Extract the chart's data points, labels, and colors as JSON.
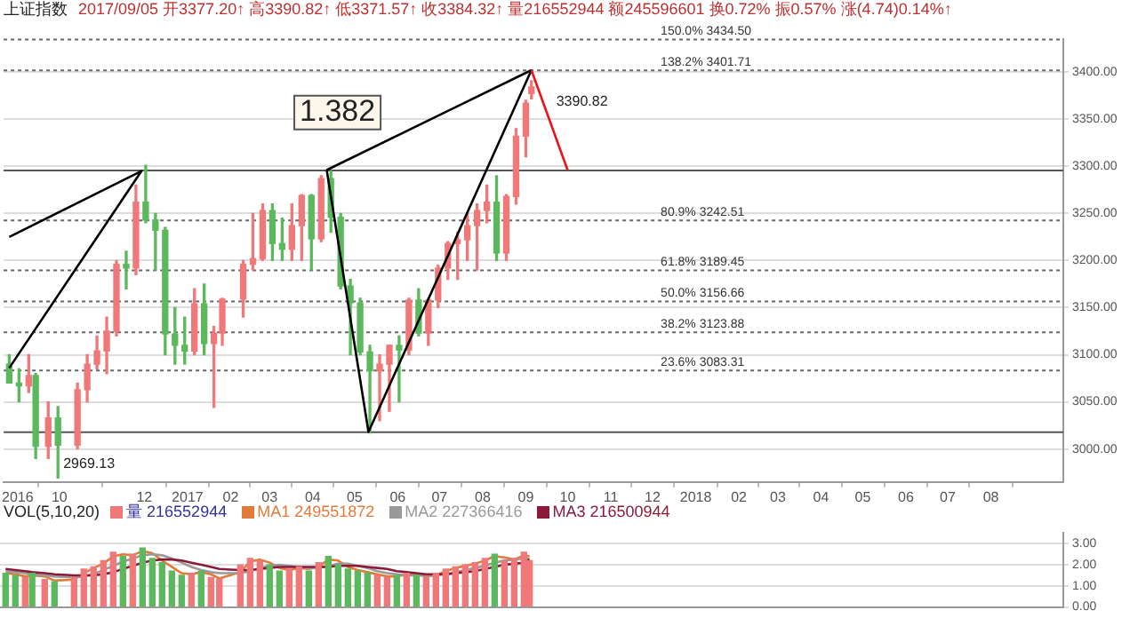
{
  "chart_data": [
    {
      "type": "candlestick",
      "title": "上证指数",
      "subtitle": "2017/09/05 开3377.20↑ 高3390.82↑ 低3371.57↑ 收3384.32↑ 量216552944 额245596601 换0.72% 振0.57% 涨(4.74)0.14%↑",
      "x": [
        "2016-08-26",
        "2016-09-02",
        "2016-09-09",
        "2016-09-14",
        "2016-09-23",
        "2016-09-30",
        "2016-10-14",
        "2016-10-21",
        "2016-10-28",
        "2016-11-04",
        "2016-11-11",
        "2016-11-18",
        "2016-11-25",
        "2016-12-02",
        "2016-12-09",
        "2016-12-16",
        "2016-12-23",
        "2016-12-30",
        "2017-01-06",
        "2017-01-13",
        "2017-01-20",
        "2017-01-26",
        "2017-02-10",
        "2017-02-17",
        "2017-02-24",
        "2017-03-03",
        "2017-03-10",
        "2017-03-17",
        "2017-03-24",
        "2017-03-31",
        "2017-04-07",
        "2017-04-14",
        "2017-04-21",
        "2017-04-28",
        "2017-05-05",
        "2017-05-12",
        "2017-05-19",
        "2017-05-26",
        "2017-06-02",
        "2017-06-09",
        "2017-06-16",
        "2017-06-23",
        "2017-06-30",
        "2017-07-07",
        "2017-07-14",
        "2017-07-21",
        "2017-07-28",
        "2017-08-04",
        "2017-08-11",
        "2017-08-18",
        "2017-08-25",
        "2017-09-01",
        "2017-09-05"
      ],
      "ohlc": [
        [
          3090,
          3100,
          3070,
          3070
        ],
        [
          3070,
          3085,
          3050,
          3067
        ],
        [
          3067,
          3100,
          3060,
          3078
        ],
        [
          3078,
          3080,
          2990,
          3003
        ],
        [
          3003,
          3050,
          2990,
          3033
        ],
        [
          3033,
          3045,
          2969.13,
          3004
        ],
        [
          3004,
          3070,
          3000,
          3063
        ],
        [
          3063,
          3100,
          3050,
          3090
        ],
        [
          3090,
          3120,
          3085,
          3104
        ],
        [
          3104,
          3140,
          3080,
          3125
        ],
        [
          3125,
          3200,
          3120,
          3196
        ],
        [
          3196,
          3210,
          3170,
          3192
        ],
        [
          3192,
          3280,
          3185,
          3262
        ],
        [
          3262,
          3301,
          3240,
          3243
        ],
        [
          3243,
          3250,
          3190,
          3232
        ],
        [
          3232,
          3235,
          3100,
          3122
        ],
        [
          3122,
          3150,
          3090,
          3110
        ],
        [
          3110,
          3140,
          3090,
          3104
        ],
        [
          3104,
          3170,
          3100,
          3154
        ],
        [
          3154,
          3175,
          3100,
          3112
        ],
        [
          3112,
          3130,
          3044,
          3123
        ],
        [
          3123,
          3160,
          3110,
          3159
        ],
        [
          3159,
          3200,
          3140,
          3196
        ],
        [
          3196,
          3250,
          3190,
          3202
        ],
        [
          3202,
          3260,
          3200,
          3253
        ],
        [
          3253,
          3260,
          3200,
          3218
        ],
        [
          3218,
          3245,
          3200,
          3212
        ],
        [
          3212,
          3260,
          3200,
          3237
        ],
        [
          3237,
          3270,
          3200,
          3269
        ],
        [
          3269,
          3270,
          3190,
          3223
        ],
        [
          3223,
          3290,
          3220,
          3287
        ],
        [
          3287,
          3295,
          3230,
          3246
        ],
        [
          3246,
          3250,
          3170,
          3173
        ],
        [
          3173,
          3180,
          3100,
          3155
        ],
        [
          3155,
          3160,
          3100,
          3103
        ],
        [
          3103,
          3110,
          3017,
          3083
        ],
        [
          3083,
          3100,
          3030,
          3090
        ],
        [
          3090,
          3110,
          3040,
          3110
        ],
        [
          3110,
          3120,
          3050,
          3105
        ],
        [
          3105,
          3160,
          3100,
          3158
        ],
        [
          3158,
          3170,
          3120,
          3123
        ],
        [
          3123,
          3160,
          3110,
          3158
        ],
        [
          3158,
          3195,
          3150,
          3192
        ],
        [
          3192,
          3220,
          3180,
          3218
        ],
        [
          3218,
          3230,
          3180,
          3222
        ],
        [
          3222,
          3250,
          3200,
          3237
        ],
        [
          3237,
          3260,
          3190,
          3253
        ],
        [
          3253,
          3280,
          3240,
          3262
        ],
        [
          3262,
          3290,
          3200,
          3208
        ],
        [
          3208,
          3270,
          3200,
          3268
        ],
        [
          3268,
          3340,
          3260,
          3332
        ],
        [
          3332,
          3370,
          3310,
          3367
        ],
        [
          3377.2,
          3390.82,
          3371.57,
          3384.32
        ]
      ],
      "colors": [
        "#5cb85c",
        "#5cb85c",
        "#f07878",
        "#5cb85c",
        "#f07878",
        "#5cb85c",
        "#f07878",
        "#f07878",
        "#f07878",
        "#f07878",
        "#f07878",
        "#5cb85c",
        "#f07878",
        "#5cb85c",
        "#5cb85c",
        "#5cb85c",
        "#5cb85c",
        "#5cb85c",
        "#f07878",
        "#5cb85c",
        "#f07878",
        "#f07878",
        "#f07878",
        "#f07878",
        "#f07878",
        "#5cb85c",
        "#5cb85c",
        "#f07878",
        "#f07878",
        "#5cb85c",
        "#f07878",
        "#5cb85c",
        "#5cb85c",
        "#5cb85c",
        "#5cb85c",
        "#5cb85c",
        "#f07878",
        "#f07878",
        "#5cb85c",
        "#f07878",
        "#5cb85c",
        "#f07878",
        "#f07878",
        "#f07878",
        "#f07878",
        "#f07878",
        "#f07878",
        "#f07878",
        "#5cb85c",
        "#f07878",
        "#f07878",
        "#f07878",
        "#f07878"
      ],
      "series": [
        {
          "type": "line",
          "color": "#000000",
          "x": [
            "2016-08-26",
            "2016-11-29",
            "2016-08-26"
          ],
          "values": [
            3225,
            3295,
            3086
          ]
        },
        {
          "type": "line",
          "color": "#000000",
          "x": [
            "2017-04-11",
            "2017-05-11",
            "2017-09-05"
          ],
          "values": [
            3296,
            3018,
            3402
          ]
        },
        {
          "type": "line",
          "color": "#000000",
          "x": [
            "2017-04-11",
            "2017-09-05"
          ],
          "values": [
            3296,
            3402
          ]
        },
        {
          "type": "line",
          "color": "#e8141a",
          "x": [
            "2017-09-05",
            "2017-10-01"
          ],
          "values": [
            3402,
            3296
          ]
        }
      ],
      "xlim": [
        "2016-08-22",
        "2018-09-22"
      ],
      "xticks": [
        {
          "value": "2016-09-01",
          "label": "2016"
        },
        {
          "value": "2016-10-01",
          "label": "10"
        },
        {
          "value": "2016-12-01",
          "label": "12"
        },
        {
          "value": "2017-01-01",
          "label": "2017"
        },
        {
          "value": "2017-02-01",
          "label": "02"
        },
        {
          "value": "2017-03-01",
          "label": "03"
        },
        {
          "value": "2017-04-01",
          "label": "04"
        },
        {
          "value": "2017-05-01",
          "label": "05"
        },
        {
          "value": "2017-06-01",
          "label": "06"
        },
        {
          "value": "2017-07-01",
          "label": "07"
        },
        {
          "value": "2017-08-01",
          "label": "08"
        },
        {
          "value": "2017-09-01",
          "label": "09"
        },
        {
          "value": "2017-10-01",
          "label": "10"
        },
        {
          "value": "2017-11-01",
          "label": "11"
        },
        {
          "value": "2017-12-01",
          "label": "12"
        },
        {
          "value": "2018-01-01",
          "label": "2018"
        },
        {
          "value": "2018-02-01",
          "label": "02"
        },
        {
          "value": "2018-03-01",
          "label": "03"
        },
        {
          "value": "2018-04-01",
          "label": "04"
        },
        {
          "value": "2018-05-01",
          "label": "05"
        },
        {
          "value": "2018-06-01",
          "label": "06"
        },
        {
          "value": "2018-07-01",
          "label": "07"
        },
        {
          "value": "2018-08-01",
          "label": "08"
        }
      ],
      "ylim": [
        2965,
        3435
      ],
      "yticks": [
        {
          "value": 3000,
          "label": "3000.00"
        },
        {
          "value": 3050,
          "label": "3050.00"
        },
        {
          "value": 3100,
          "label": "3100.00"
        },
        {
          "value": 3150,
          "label": "3150.00"
        },
        {
          "value": 3200,
          "label": "3200.00"
        },
        {
          "value": 3250,
          "label": "3250.00"
        },
        {
          "value": 3300,
          "label": "3300.00"
        },
        {
          "value": 3350,
          "label": "3350.00"
        },
        {
          "value": 3400,
          "label": "3400.00"
        }
      ],
      "grid": "y",
      "legend": false,
      "ref_lines": [
        {
          "axis": "y",
          "value": 3434.5,
          "label": "150.0% 3434.50",
          "color": "#666666",
          "line_style": "dotted"
        },
        {
          "axis": "y",
          "value": 3401.71,
          "label": "138.2% 3401.71",
          "color": "#666666",
          "line_style": "dotted"
        },
        {
          "axis": "y",
          "value": 3295.6,
          "color": "#555555",
          "line_style": "solid"
        },
        {
          "axis": "y",
          "value": 3242.51,
          "label": "80.9% 3242.51",
          "color": "#666666",
          "line_style": "dotted"
        },
        {
          "axis": "y",
          "value": 3189.45,
          "label": "61.8% 3189.45",
          "color": "#666666",
          "line_style": "dotted"
        },
        {
          "axis": "y",
          "value": 3156.66,
          "label": "50.0% 3156.66",
          "color": "#666666",
          "line_style": "dotted"
        },
        {
          "axis": "y",
          "value": 3123.88,
          "label": "38.2% 3123.88",
          "color": "#666666",
          "line_style": "dotted"
        },
        {
          "axis": "y",
          "value": 3083.31,
          "label": "23.6% 3083.31",
          "color": "#666666",
          "line_style": "dotted"
        },
        {
          "axis": "y",
          "value": 3017.7,
          "color": "#555555",
          "line_style": "solid"
        }
      ],
      "annotations": [
        "1.382",
        {
          "text": "3390.82",
          "x": "2017-09-05",
          "y": 3390.82
        },
        {
          "text": "2969.13",
          "x": "2016-09-30",
          "y": 2969.13
        }
      ]
    },
    {
      "type": "bar",
      "title": "VOL(5,10,20)",
      "x": [
        "2016-08-26",
        "2016-09-02",
        "2016-09-09",
        "2016-09-14",
        "2016-09-23",
        "2016-09-30",
        "2016-10-14",
        "2016-10-21",
        "2016-10-28",
        "2016-11-04",
        "2016-11-11",
        "2016-11-18",
        "2016-11-25",
        "2016-12-02",
        "2016-12-09",
        "2016-12-16",
        "2016-12-23",
        "2016-12-30",
        "2017-01-06",
        "2017-01-13",
        "2017-01-20",
        "2017-01-26",
        "2017-02-10",
        "2017-02-17",
        "2017-02-24",
        "2017-03-03",
        "2017-03-10",
        "2017-03-17",
        "2017-03-24",
        "2017-03-31",
        "2017-04-07",
        "2017-04-14",
        "2017-04-21",
        "2017-04-28",
        "2017-05-05",
        "2017-05-12",
        "2017-05-19",
        "2017-05-26",
        "2017-06-02",
        "2017-06-09",
        "2017-06-16",
        "2017-06-23",
        "2017-06-30",
        "2017-07-07",
        "2017-07-14",
        "2017-07-21",
        "2017-07-28",
        "2017-08-04",
        "2017-08-11",
        "2017-08-18",
        "2017-08-25",
        "2017-09-01",
        "2017-09-05"
      ],
      "series": [
        {
          "type": "bar",
          "name": "量 216552944",
          "colors": [
            "#5cb85c",
            "#5cb85c",
            "#f07878",
            "#5cb85c",
            "#f07878",
            "#5cb85c",
            "#f07878",
            "#f07878",
            "#f07878",
            "#f07878",
            "#f07878",
            "#5cb85c",
            "#f07878",
            "#5cb85c",
            "#5cb85c",
            "#5cb85c",
            "#5cb85c",
            "#5cb85c",
            "#f07878",
            "#5cb85c",
            "#f07878",
            "#f07878",
            "#f07878",
            "#f07878",
            "#f07878",
            "#5cb85c",
            "#5cb85c",
            "#f07878",
            "#f07878",
            "#5cb85c",
            "#f07878",
            "#5cb85c",
            "#5cb85c",
            "#5cb85c",
            "#5cb85c",
            "#5cb85c",
            "#f07878",
            "#f07878",
            "#5cb85c",
            "#f07878",
            "#5cb85c",
            "#f07878",
            "#f07878",
            "#f07878",
            "#f07878",
            "#f07878",
            "#f07878",
            "#f07878",
            "#5cb85c",
            "#f07878",
            "#f07878",
            "#f07878",
            "#f07878"
          ],
          "values": [
            1.6,
            1.5,
            1.4,
            1.6,
            1.3,
            1.2,
            1.4,
            1.8,
            1.9,
            2.2,
            2.6,
            2.4,
            2.5,
            2.8,
            2.3,
            2.1,
            1.7,
            1.5,
            1.6,
            1.7,
            1.4,
            1.3,
            2.0,
            2.3,
            2.2,
            2.0,
            1.7,
            1.8,
            1.9,
            1.7,
            2.1,
            2.4,
            2.0,
            1.8,
            1.7,
            1.6,
            1.5,
            1.4,
            1.5,
            1.6,
            1.5,
            1.4,
            1.6,
            1.8,
            1.9,
            2.0,
            2.1,
            2.3,
            2.5,
            2.2,
            2.3,
            2.6,
            2.2
          ]
        },
        {
          "type": "line",
          "name": "MA1 249551872",
          "color": "#e07b39",
          "values": [
            1.6,
            1.55,
            1.45,
            1.5,
            1.45,
            1.25,
            1.3,
            1.6,
            1.85,
            2.05,
            2.4,
            2.5,
            2.45,
            2.65,
            2.55,
            2.2,
            1.9,
            1.6,
            1.55,
            1.65,
            1.55,
            1.35,
            1.65,
            2.15,
            2.25,
            2.1,
            1.85,
            1.75,
            1.85,
            1.8,
            1.9,
            2.25,
            2.2,
            1.9,
            1.75,
            1.65,
            1.55,
            1.45,
            1.45,
            1.55,
            1.55,
            1.45,
            1.5,
            1.7,
            1.85,
            1.95,
            2.05,
            2.2,
            2.4,
            2.35,
            2.25,
            2.45,
            2.4
          ]
        },
        {
          "type": "line",
          "name": "MA2 227366416",
          "color": "#999999",
          "values": [
            1.7,
            1.65,
            1.6,
            1.55,
            1.5,
            1.45,
            1.4,
            1.45,
            1.55,
            1.75,
            1.95,
            2.15,
            2.3,
            2.45,
            2.5,
            2.45,
            2.3,
            2.1,
            1.9,
            1.75,
            1.65,
            1.6,
            1.6,
            1.7,
            1.85,
            1.95,
            2.0,
            1.95,
            1.9,
            1.85,
            1.85,
            1.95,
            2.05,
            2.05,
            1.95,
            1.85,
            1.7,
            1.6,
            1.55,
            1.5,
            1.5,
            1.5,
            1.5,
            1.55,
            1.65,
            1.75,
            1.85,
            1.95,
            2.1,
            2.2,
            2.25,
            2.3,
            2.3
          ]
        },
        {
          "type": "line",
          "name": "MA3 216500944",
          "color": "#8b1a3a",
          "values": [
            1.8,
            1.75,
            1.7,
            1.65,
            1.6,
            1.55,
            1.5,
            1.5,
            1.5,
            1.55,
            1.65,
            1.8,
            1.95,
            2.1,
            2.2,
            2.25,
            2.25,
            2.2,
            2.1,
            2.0,
            1.9,
            1.8,
            1.75,
            1.75,
            1.8,
            1.85,
            1.9,
            1.9,
            1.9,
            1.9,
            1.9,
            1.9,
            1.95,
            1.95,
            1.95,
            1.9,
            1.85,
            1.8,
            1.7,
            1.65,
            1.6,
            1.55,
            1.55,
            1.55,
            1.6,
            1.65,
            1.7,
            1.8,
            1.9,
            2.0,
            2.05,
            2.1,
            2.25
          ]
        }
      ],
      "xlim": [
        "2016-08-22",
        "2018-09-22"
      ],
      "ylim": [
        0,
        3.5
      ],
      "yticks": [
        {
          "value": 0,
          "label": "0.00"
        },
        {
          "value": 1,
          "label": "1.00"
        },
        {
          "value": 2,
          "label": "2.00"
        },
        {
          "value": 3,
          "label": "3.00"
        }
      ],
      "grid": "y",
      "legend": "top left",
      "tick_labels": "y"
    }
  ]
}
